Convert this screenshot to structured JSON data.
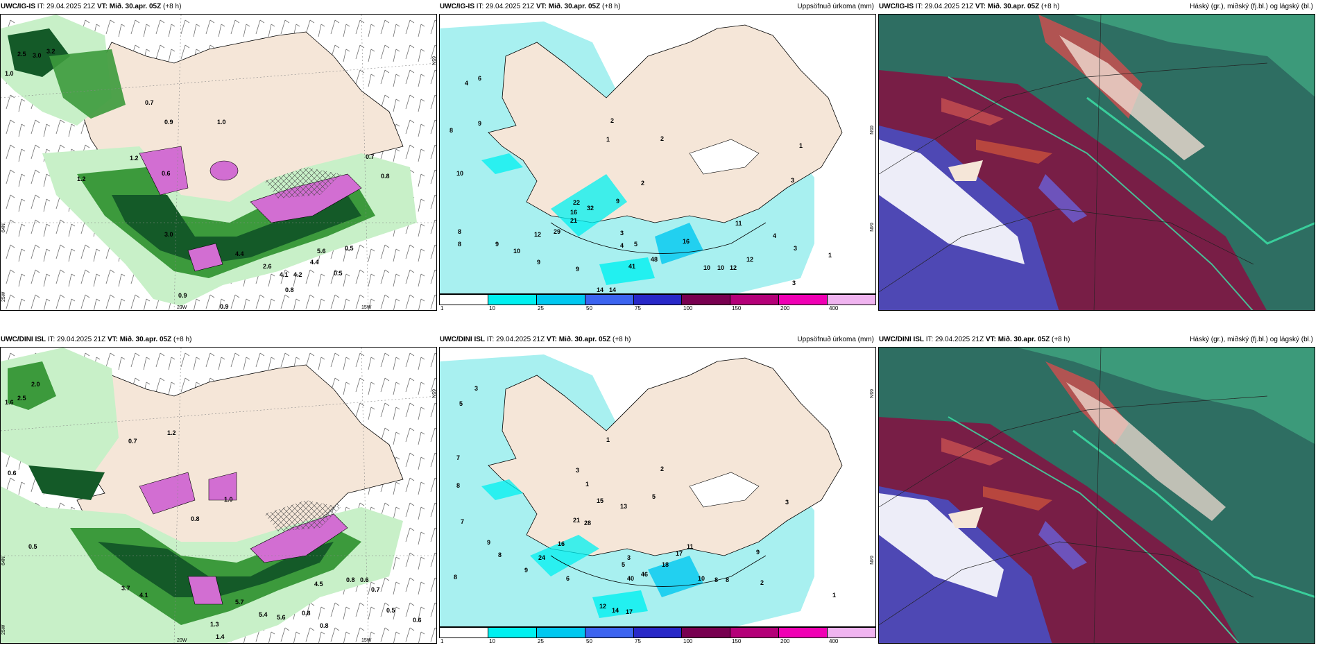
{
  "panels": [
    {
      "model_label": "UWC/IG-IS",
      "it_label": "IT: 29.04.2025 21Z",
      "vt_label": "VT: Mið. 30.apr. 05Z",
      "lead_label": "(+8 h)",
      "right_title": "",
      "axis_labels": [
        "20W",
        "15W",
        "25W",
        "64N",
        "65N"
      ],
      "values": [
        "2.5",
        "3.0",
        "3.2",
        "1.0",
        "0.7",
        "0.9",
        "1.0",
        "1.2",
        "0.6",
        "1.2",
        "3.0",
        "4.4",
        "2.6",
        "4.1",
        "4.2",
        "4.4",
        "5.6",
        "0.5",
        "0.7",
        "0.8",
        "0.9",
        "0.8",
        "0.9",
        "0.5"
      ]
    },
    {
      "model_label": "UWC/IG-IS",
      "it_label": "IT: 29.04.2025 21Z",
      "vt_label": "VT: Mið. 30.apr. 05Z",
      "lead_label": "(+8 h)",
      "right_title": "Uppsöfnuð úrkoma (mm)",
      "axis_labels": [
        "65N",
        "64N"
      ],
      "values": [
        "6",
        "4",
        "8",
        "9",
        "10",
        "2",
        "1",
        "2",
        "1",
        "9",
        "2",
        "3",
        "22",
        "16",
        "21",
        "32",
        "29",
        "12",
        "8",
        "8",
        "9",
        "10",
        "9",
        "9",
        "3",
        "4",
        "5",
        "41",
        "48",
        "10",
        "10",
        "12",
        "16",
        "4",
        "3",
        "1",
        "3",
        "14",
        "14",
        "11",
        "12"
      ]
    },
    {
      "model_label": "UWC/IG-IS",
      "it_label": "IT: 29.04.2025 21Z",
      "vt_label": "VT: Mið. 30.apr. 05Z",
      "lead_label": "(+8 h)",
      "right_title": "Háský (gr.), miðský (fj.bl.) og lágský (bl.)"
    },
    {
      "model_label": "UWC/DINI ISL",
      "it_label": "IT: 29.04.2025 21Z",
      "vt_label": "VT: Mið. 30.apr. 05Z",
      "lead_label": "(+8 h)",
      "right_title": "",
      "axis_labels": [
        "20W",
        "15W",
        "25W",
        "64N",
        "65N"
      ],
      "values": [
        "2.0",
        "2.5",
        "1.6",
        "0.5",
        "0.6",
        "0.7",
        "1.2",
        "0.8",
        "1.0",
        "3.7",
        "4.1",
        "5.7",
        "5.4",
        "5.6",
        "4.5",
        "0.8",
        "0.6",
        "0.7",
        "0.8",
        "0.8",
        "0.5",
        "0.6",
        "1.3",
        "1.4"
      ]
    },
    {
      "model_label": "UWC/DINI ISL",
      "it_label": "IT: 29.04.2025 21Z",
      "vt_label": "VT: Mið. 30.apr. 05Z",
      "lead_label": "(+8 h)",
      "right_title": "Uppsöfnuð úrkoma (mm)",
      "axis_labels": [
        "65N",
        "64N"
      ],
      "values": [
        "3",
        "5",
        "7",
        "8",
        "9",
        "8",
        "7",
        "8",
        "1",
        "2",
        "3",
        "1",
        "5",
        "15",
        "13",
        "21",
        "28",
        "16",
        "24",
        "9",
        "6",
        "5",
        "3",
        "40",
        "46",
        "18",
        "17",
        "11",
        "10",
        "8",
        "8",
        "9",
        "2",
        "3",
        "1",
        "12",
        "14",
        "17"
      ]
    },
    {
      "model_label": "UWC/DINI ISL",
      "it_label": "IT: 29.04.2025 21Z",
      "vt_label": "VT: Mið. 30.apr. 05Z",
      "lead_label": "(+8 h)",
      "right_title": "Háský (gr.), miðský (fj.bl.) og lágský (bl.)"
    }
  ],
  "legend": {
    "ticks": [
      "1",
      "10",
      "25",
      "50",
      "75",
      "100",
      "150",
      "200",
      "400"
    ],
    "colors": [
      "#ffffff",
      "#00f0f0",
      "#00c8f0",
      "#3c64f0",
      "#2828c8",
      "#780050",
      "#b40078",
      "#f000b4",
      "#f0b4f0"
    ]
  },
  "colors": {
    "land": "#f5e6d8",
    "precip_light": "#a8f0f0",
    "wind_green_light": "#c8f0c8",
    "wind_green": "#3c9a3c",
    "wind_green_dark": "#145a28",
    "magenta": "#d26ed2",
    "cloud_high": "#1e5a50",
    "cloud_mid": "#781e46",
    "cloud_low": "#4650c8"
  }
}
